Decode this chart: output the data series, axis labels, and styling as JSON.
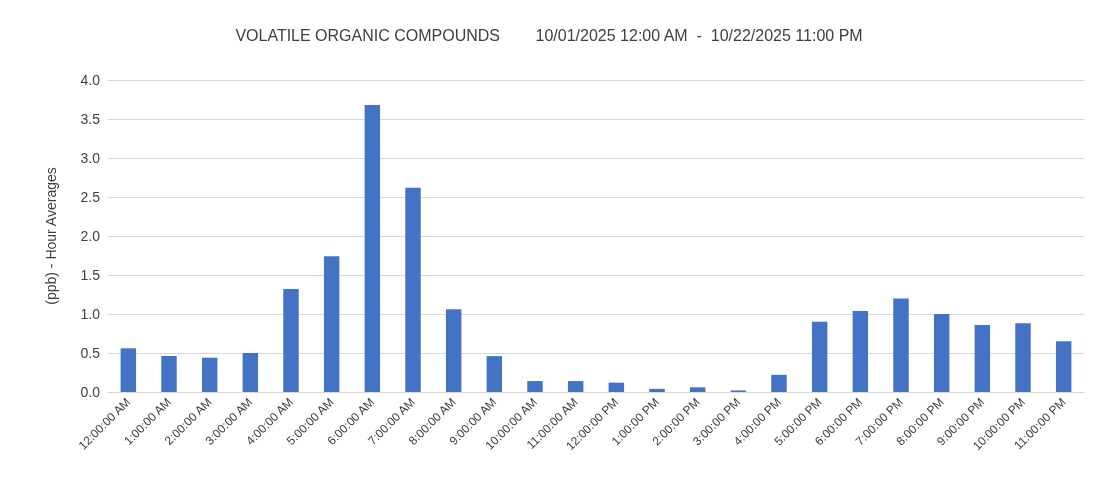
{
  "chart_data": {
    "type": "bar",
    "title": "VOLATILE ORGANIC COMPOUNDS        10/01/2025 12:00 AM  -  10/22/2025 11:00 PM",
    "ylabel": "(ppb) - Hour Averages",
    "categories": [
      "12:00:00 AM",
      "1:00:00 AM",
      "2:00:00 AM",
      "3:00:00 AM",
      "4:00:00 AM",
      "5:00:00 AM",
      "6:00:00 AM",
      "7:00:00 AM",
      "8:00:00 AM",
      "9:00:00 AM",
      "10:00:00 AM",
      "11:00:00 AM",
      "12:00:00 PM",
      "1:00:00 PM",
      "2:00:00 PM",
      "3:00:00 PM",
      "4:00:00 PM",
      "5:00:00 PM",
      "6:00:00 PM",
      "7:00:00 PM",
      "8:00:00 PM",
      "9:00:00 PM",
      "10:00:00 PM",
      "11:00:00 PM"
    ],
    "values": [
      0.56,
      0.46,
      0.44,
      0.5,
      1.32,
      1.74,
      3.68,
      2.62,
      1.06,
      0.46,
      0.14,
      0.14,
      0.12,
      0.04,
      0.06,
      0.02,
      0.22,
      0.9,
      1.04,
      1.2,
      1.0,
      0.86,
      0.88,
      0.65
    ],
    "color": "#4472c4",
    "ylim": [
      0,
      4
    ],
    "yticks": [
      {
        "value": 0,
        "label": "0.0"
      },
      {
        "value": 0.5,
        "label": "0.5"
      },
      {
        "value": 1,
        "label": "1.0"
      },
      {
        "value": 1.5,
        "label": "1.5"
      },
      {
        "value": 2,
        "label": "2.0"
      },
      {
        "value": 2.5,
        "label": "2.5"
      },
      {
        "value": 3,
        "label": "3.0"
      },
      {
        "value": 3.5,
        "label": "3.5"
      },
      {
        "value": 4,
        "label": "4.0"
      }
    ],
    "grid": "y"
  }
}
